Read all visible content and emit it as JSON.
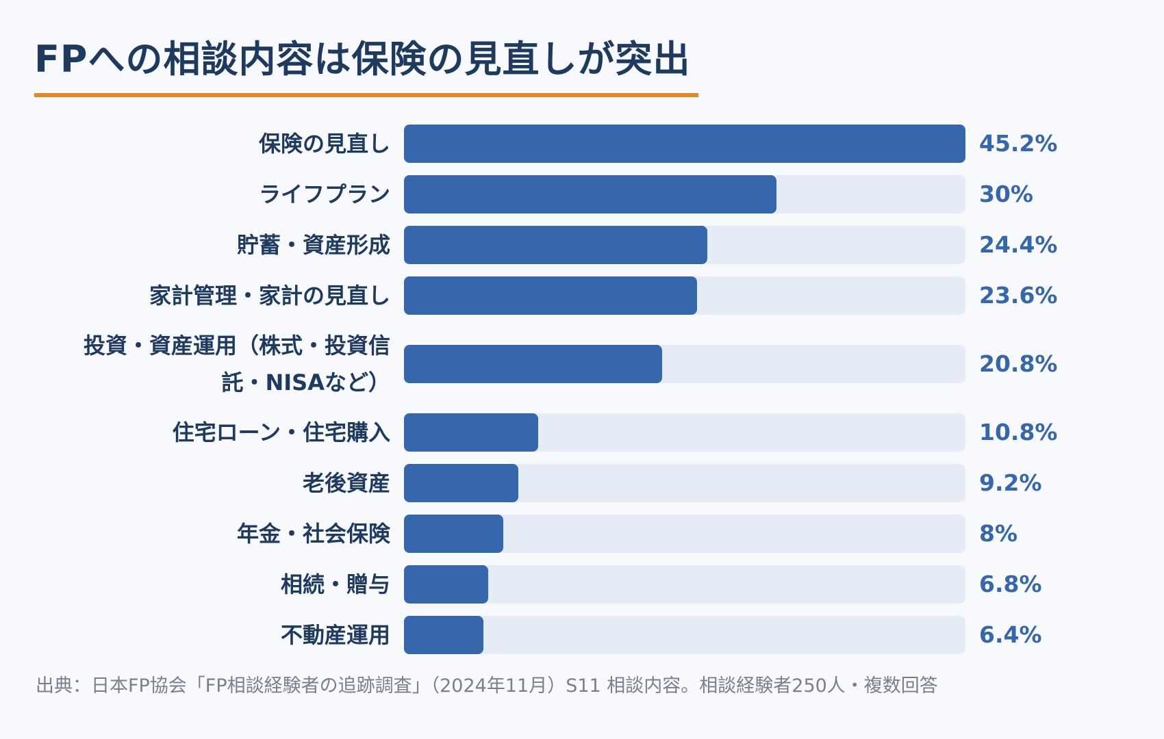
{
  "chart_data": {
    "type": "bar",
    "orientation": "horizontal",
    "title": "FPへの相談内容は保険の見直しが突出",
    "categories": [
      "保険の見直し",
      "ライフプラン",
      "貯蓄・資産形成",
      "家計管理・家計の見直し",
      "投資・資産運用（株式・投資信託・NISAなど）",
      "住宅ローン・住宅購入",
      "老後資産",
      "年金・社会保険",
      "相続・贈与",
      "不動産運用"
    ],
    "category_lines": [
      [
        "保険の見直し"
      ],
      [
        "ライフプラン"
      ],
      [
        "貯蓄・資産形成"
      ],
      [
        "家計管理・家計の見直し"
      ],
      [
        "投資・資産運用（株式・投資信",
        "託・NISAなど）"
      ],
      [
        "住宅ローン・住宅購入"
      ],
      [
        "老後資産"
      ],
      [
        "年金・社会保険"
      ],
      [
        "相続・贈与"
      ],
      [
        "不動産運用"
      ]
    ],
    "values": [
      45.2,
      30,
      24.4,
      23.6,
      20.8,
      10.8,
      9.2,
      8,
      6.8,
      6.4
    ],
    "value_labels": [
      "45.2%",
      "30%",
      "24.4%",
      "23.6%",
      "20.8%",
      "10.8%",
      "9.2%",
      "8%",
      "6.8%",
      "6.4%"
    ],
    "xlim": [
      0,
      45.2
    ],
    "grid": false,
    "colors": {
      "bar": "#3667ac",
      "track": "#e6ecf6",
      "value_text": "#3667ac",
      "accent_rule": "#e58a22"
    }
  },
  "source": "出典：日本FP協会「FP相談経験者の追跡調査」（2024年11月）S11 相談内容。相談経験者250人・複数回答"
}
